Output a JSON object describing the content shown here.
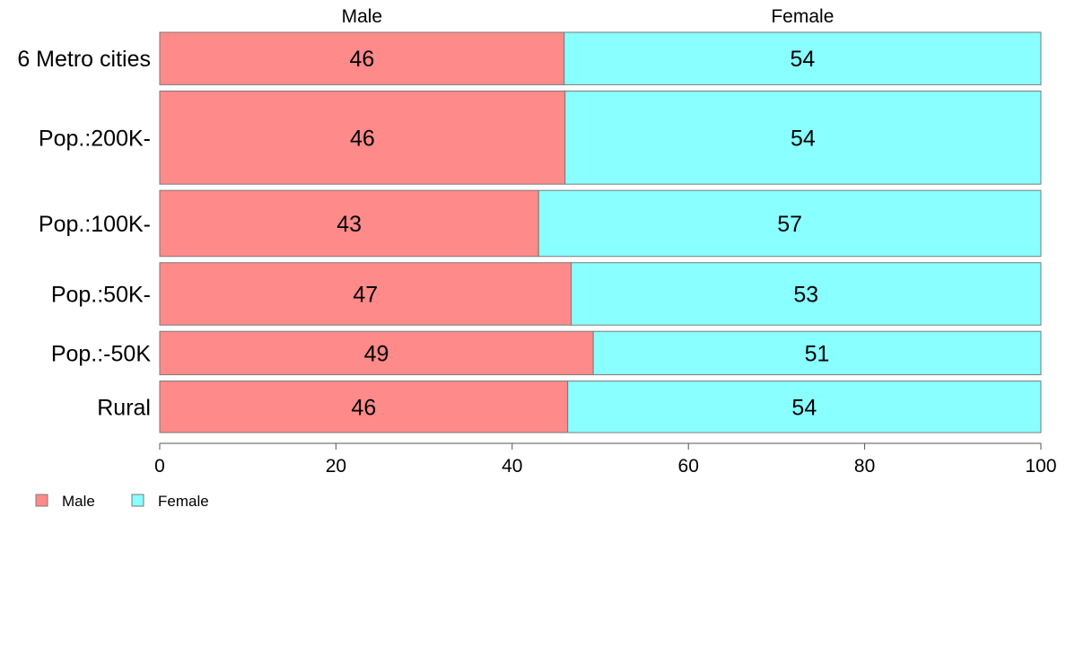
{
  "chart_data": {
    "type": "bar",
    "orientation": "horizontal",
    "stacked": true,
    "categories": [
      "6 Metro cities",
      "Pop.:200K-",
      "Pop.:100K-",
      "Pop.:50K-",
      "Pop.:-50K",
      "Rural"
    ],
    "weights": [
      58,
      103,
      73,
      69,
      48,
      57
    ],
    "series": [
      {
        "name": "Male",
        "values": [
          45.9,
          46.0,
          43.0,
          46.7,
          49.2,
          46.3
        ],
        "labels": [
          "46",
          "46",
          "43",
          "47",
          "49",
          "46"
        ]
      },
      {
        "name": "Female",
        "values": [
          54.1,
          54.0,
          57.0,
          53.3,
          50.8,
          53.7
        ],
        "labels": [
          "54",
          "54",
          "57",
          "53",
          "51",
          "54"
        ]
      }
    ],
    "colors": {
      "Male": "#ff8a8a",
      "Female": "#8affff"
    },
    "top_labels": [
      "Male",
      "Female"
    ],
    "xlim": [
      0,
      100
    ],
    "xticks": [
      0,
      20,
      40,
      60,
      80,
      100
    ],
    "grid": false,
    "legend": {
      "position": "bottom-left",
      "entries": [
        "Male",
        "Female"
      ]
    }
  }
}
